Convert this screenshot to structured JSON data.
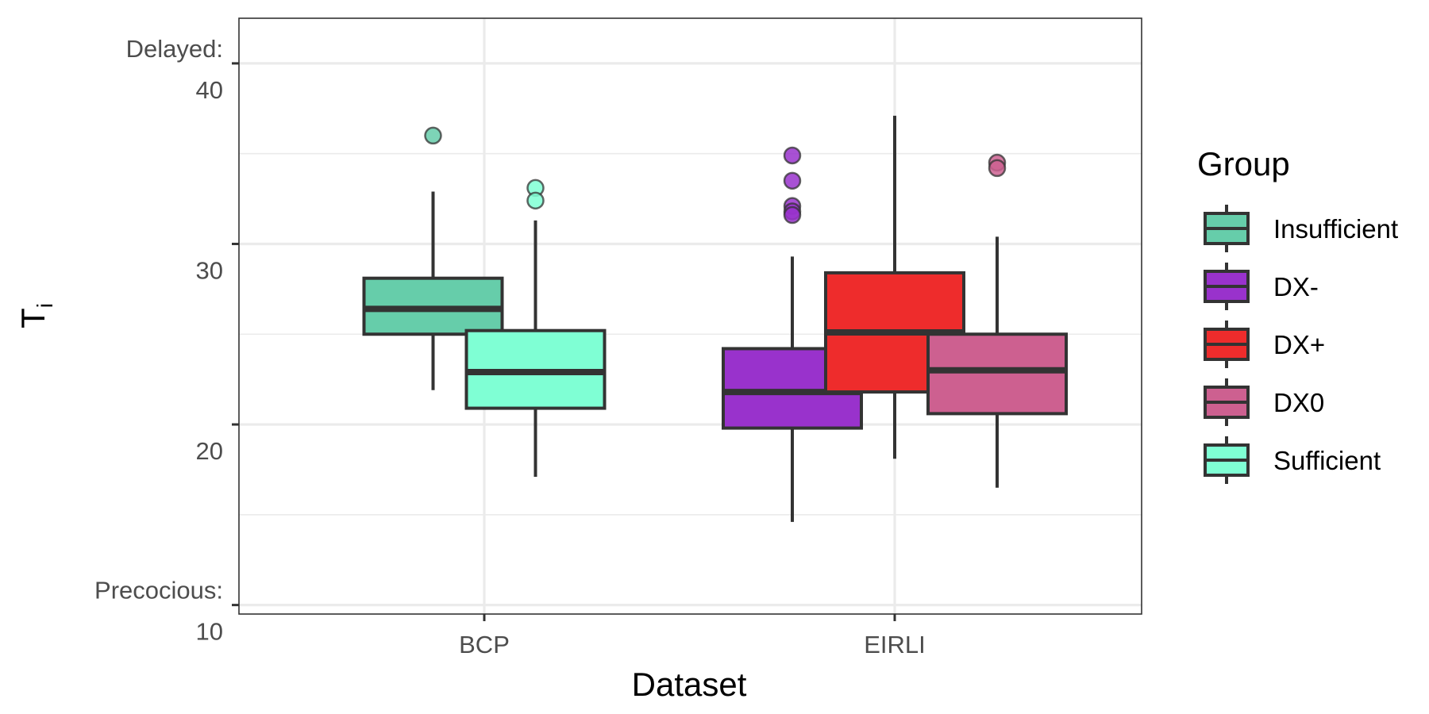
{
  "chart_data": {
    "type": "boxplot",
    "title": "",
    "xlabel": "Dataset",
    "ylabel": "T",
    "ylabel_subscript": "i",
    "categories": [
      "BCP",
      "EIRLI"
    ],
    "ylim": [
      9.5,
      42.5
    ],
    "y_ticks": [
      {
        "value": 40,
        "label": "40",
        "annotation": "Delayed:"
      },
      {
        "value": 30,
        "label": "30",
        "annotation": ""
      },
      {
        "value": 20,
        "label": "20",
        "annotation": ""
      },
      {
        "value": 10,
        "label": "10",
        "annotation": "Precocious:"
      }
    ],
    "grid": true,
    "legend": {
      "title": "Group",
      "placement": "right",
      "entries": [
        {
          "name": "Insufficient",
          "color": "#66cdaa"
        },
        {
          "name": "DX-",
          "color": "#9932cc"
        },
        {
          "name": "DX+",
          "color": "#ee2c2c"
        },
        {
          "name": "DX0",
          "color": "#cd6090"
        },
        {
          "name": "Sufficient",
          "color": "#7fffd4"
        }
      ]
    },
    "boxes": [
      {
        "category": "BCP",
        "group": "Insufficient",
        "whisker_low": 21.9,
        "q1": 25.0,
        "median": 26.4,
        "q3": 28.1,
        "whisker_high": 32.9,
        "outliers": [
          36.0
        ]
      },
      {
        "category": "BCP",
        "group": "Sufficient",
        "whisker_low": 17.1,
        "q1": 20.9,
        "median": 22.9,
        "q3": 25.2,
        "whisker_high": 31.3,
        "outliers": [
          33.1,
          32.4
        ]
      },
      {
        "category": "EIRLI",
        "group": "DX-",
        "whisker_low": 14.6,
        "q1": 19.8,
        "median": 21.8,
        "q3": 24.2,
        "whisker_high": 29.3,
        "outliers": [
          34.9,
          33.5,
          32.1,
          31.8,
          31.6
        ]
      },
      {
        "category": "EIRLI",
        "group": "DX+",
        "whisker_low": 18.1,
        "q1": 21.8,
        "median": 25.1,
        "q3": 28.4,
        "whisker_high": 37.1,
        "outliers": []
      },
      {
        "category": "EIRLI",
        "group": "DX0",
        "whisker_low": 16.5,
        "q1": 20.6,
        "median": 23.0,
        "q3": 25.0,
        "whisker_high": 30.4,
        "outliers": [
          34.5,
          34.2
        ]
      }
    ]
  }
}
